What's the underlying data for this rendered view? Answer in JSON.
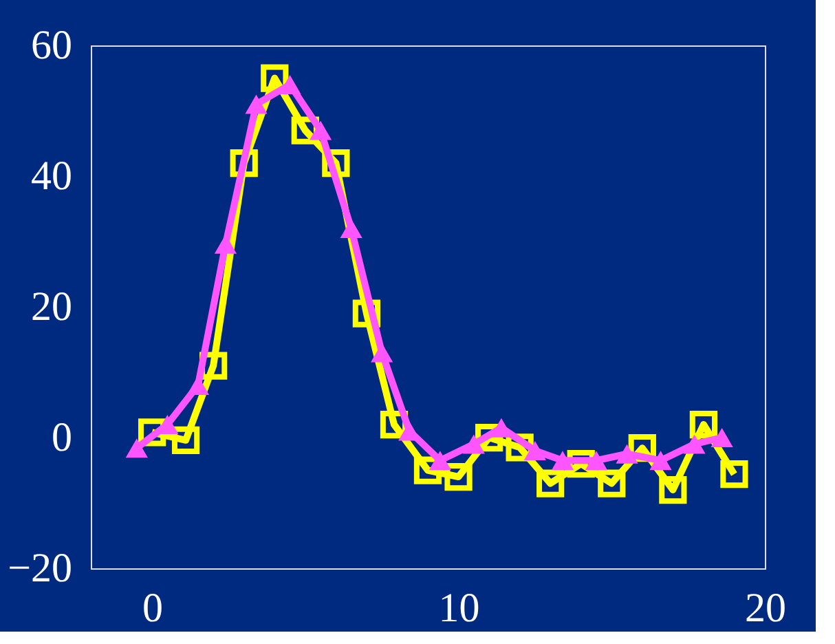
{
  "chart_data": {
    "type": "line",
    "xlim": [
      -2,
      20
    ],
    "ylim": [
      -20,
      60
    ],
    "xticks": [
      0,
      10,
      20
    ],
    "yticks": [
      -20,
      0,
      20,
      40,
      60
    ],
    "grid": false,
    "legend": false,
    "line_style": "solid",
    "series": [
      {
        "color": "#ffff00",
        "marker": "square",
        "x": [
          0,
          1.1,
          2,
          3,
          4,
          5,
          6,
          7,
          7.9,
          9,
          10,
          11,
          12,
          13,
          14,
          15,
          16,
          17,
          18,
          19
        ],
        "values": [
          0.8,
          -0.4,
          11,
          42,
          55,
          47,
          42,
          19,
          2,
          -5,
          -6,
          0,
          -1.5,
          -7,
          -4,
          -7,
          -1.6,
          -8,
          2,
          -5.6
        ]
      },
      {
        "color": "#ff55ff",
        "marker": "triangle",
        "x": [
          -0.5,
          0.5,
          1.5,
          2.4,
          3.4,
          4.5,
          5.5,
          6.5,
          7.5,
          8.4,
          9.4,
          10.5,
          11.4,
          12.5,
          13.4,
          14.5,
          15.5,
          16.6,
          17.7,
          18.6
        ],
        "values": [
          -1.6,
          2,
          8,
          29.6,
          51,
          54,
          47,
          32,
          13,
          1,
          -3.5,
          -1,
          1.5,
          -2,
          -3.5,
          -3.5,
          -2.5,
          -3.5,
          -1,
          0
        ]
      }
    ]
  }
}
